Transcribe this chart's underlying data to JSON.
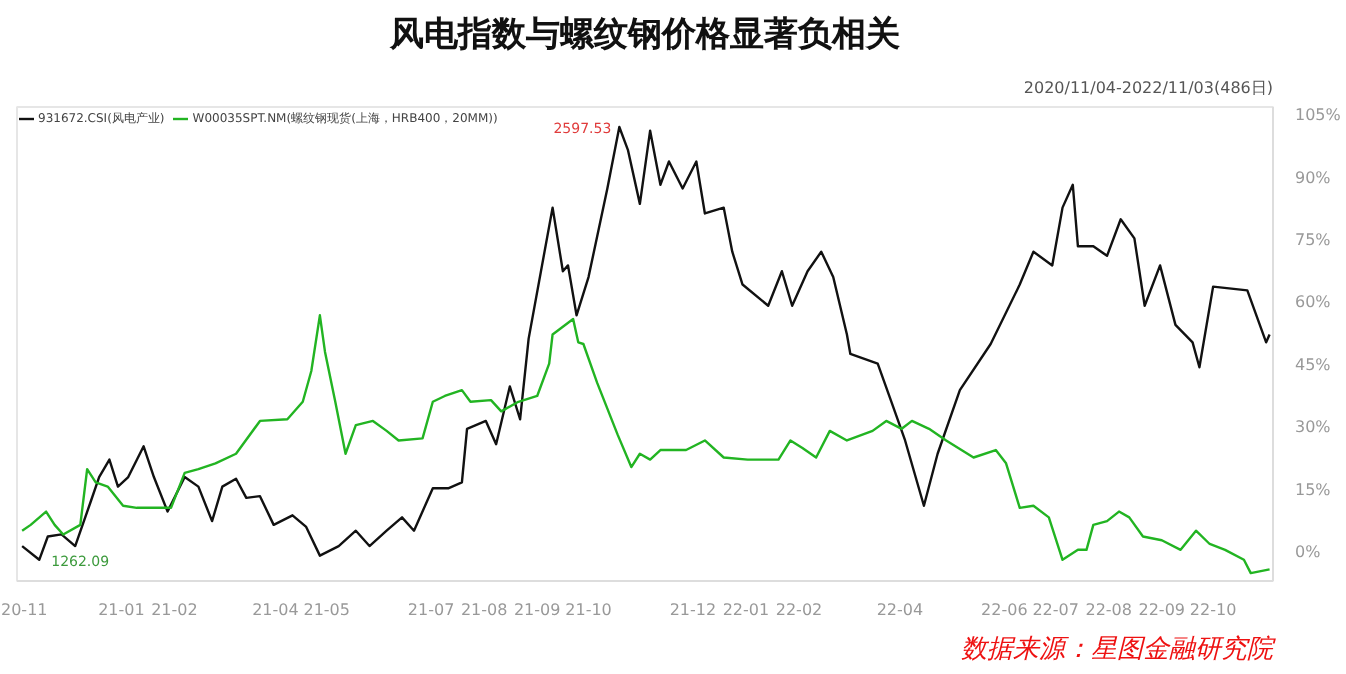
{
  "chart_data": {
    "type": "line",
    "title": "风电指数与螺纹钢价格显著负相关",
    "annotations": [
      "2020/11/04-2022/11/03(486日)",
      {
        "text": "2597.53",
        "x": "2021-10-19",
        "y": 102.2
      },
      {
        "text": "1262.09",
        "x": "2020-11-14",
        "y": -1.9
      },
      "数据来源：星图金融研究院"
    ],
    "legend": "top left",
    "grid": false,
    "line_style": "solid",
    "marker": "none",
    "ylim": [
      -7,
      107
    ],
    "yticks": [
      {
        "value": 0,
        "label": "0%"
      },
      {
        "value": 15,
        "label": "15%"
      },
      {
        "value": 30,
        "label": "30%"
      },
      {
        "value": 45,
        "label": "45%"
      },
      {
        "value": 60,
        "label": "60%"
      },
      {
        "value": 75,
        "label": "75%"
      },
      {
        "value": 90,
        "label": "90%"
      },
      {
        "value": 105,
        "label": "105%"
      }
    ],
    "xlim": [
      "2020-11-01",
      "2022-11-05"
    ],
    "xticks": [
      {
        "value": "2020-11-01",
        "label": "20-11"
      },
      {
        "value": "2021-01-01",
        "label": "21-01"
      },
      {
        "value": "2021-02-01",
        "label": "21-02"
      },
      {
        "value": "2021-04-01",
        "label": "21-04"
      },
      {
        "value": "2021-05-01",
        "label": "21-05"
      },
      {
        "value": "2021-07-01",
        "label": "21-07"
      },
      {
        "value": "2021-08-01",
        "label": "21-08"
      },
      {
        "value": "2021-09-01",
        "label": "21-09"
      },
      {
        "value": "2021-10-01",
        "label": "21-10"
      },
      {
        "value": "2021-12-01",
        "label": "21-12"
      },
      {
        "value": "2022-01-01",
        "label": "22-01"
      },
      {
        "value": "2022-02-01",
        "label": "22-02"
      },
      {
        "value": "2022-04-01",
        "label": "22-04"
      },
      {
        "value": "2022-06-01",
        "label": "22-06"
      },
      {
        "value": "2022-07-01",
        "label": "22-07"
      },
      {
        "value": "2022-08-01",
        "label": "22-08"
      },
      {
        "value": "2022-09-01",
        "label": "22-09"
      },
      {
        "value": "2022-10-01",
        "label": "22-10"
      }
    ],
    "series": [
      {
        "name": "931672.CSI(风电产业)",
        "color": "#111111",
        "x": [
          "2020-11-04",
          "2020-11-14",
          "2020-11-19",
          "2020-11-27",
          "2020-12-05",
          "2020-12-14",
          "2020-12-19",
          "2020-12-25",
          "2020-12-30",
          "2021-01-05",
          "2021-01-14",
          "2021-01-20",
          "2021-01-28",
          "2021-02-07",
          "2021-02-15",
          "2021-02-23",
          "2021-03-01",
          "2021-03-09",
          "2021-03-15",
          "2021-03-23",
          "2021-03-31",
          "2021-04-11",
          "2021-04-19",
          "2021-04-27",
          "2021-05-08",
          "2021-05-18",
          "2021-05-26",
          "2021-06-05",
          "2021-06-14",
          "2021-06-21",
          "2021-07-02",
          "2021-07-11",
          "2021-07-19",
          "2021-07-22",
          "2021-08-02",
          "2021-08-08",
          "2021-08-16",
          "2021-08-22",
          "2021-08-27",
          "2021-09-10",
          "2021-09-16",
          "2021-09-19",
          "2021-09-24",
          "2021-10-01",
          "2021-10-12",
          "2021-10-19",
          "2021-10-24",
          "2021-10-31",
          "2021-11-06",
          "2021-11-12",
          "2021-11-17",
          "2021-11-25",
          "2021-12-03",
          "2021-12-08",
          "2021-12-19",
          "2021-12-24",
          "2021-12-30",
          "2022-01-14",
          "2022-01-22",
          "2022-01-28",
          "2022-02-06",
          "2022-02-14",
          "2022-02-21",
          "2022-03-01",
          "2022-03-03",
          "2022-03-19",
          "2022-03-27",
          "2022-04-04",
          "2022-04-15",
          "2022-04-23",
          "2022-05-06",
          "2022-05-24",
          "2022-06-10",
          "2022-06-18",
          "2022-06-29",
          "2022-07-05",
          "2022-07-11",
          "2022-07-14",
          "2022-07-23",
          "2022-07-31",
          "2022-08-08",
          "2022-08-16",
          "2022-08-22",
          "2022-08-31",
          "2022-09-09",
          "2022-09-19",
          "2022-09-23",
          "2022-10-01",
          "2022-10-21",
          "2022-11-01",
          "2022-11-03"
        ],
        "values": [
          1.4,
          -1.9,
          3.7,
          4.2,
          1.4,
          12.0,
          18.0,
          22.2,
          15.7,
          18.0,
          25.4,
          18.0,
          9.7,
          18.0,
          15.7,
          7.4,
          15.7,
          17.6,
          13.0,
          13.4,
          6.5,
          8.8,
          6.0,
          -0.9,
          1.4,
          5.1,
          1.4,
          5.1,
          8.3,
          5.1,
          15.3,
          15.3,
          16.7,
          29.6,
          31.5,
          25.9,
          39.8,
          31.9,
          51.3,
          82.8,
          67.5,
          68.9,
          56.9,
          66.1,
          87.4,
          102.2,
          96.7,
          83.7,
          101.3,
          88.3,
          93.9,
          87.4,
          93.9,
          81.4,
          82.8,
          72.2,
          64.3,
          59.2,
          67.5,
          59.2,
          67.5,
          72.2,
          66.1,
          52.3,
          47.6,
          45.3,
          36.1,
          26.8,
          11.1,
          23.6,
          38.9,
          50.0,
          64.3,
          72.2,
          68.9,
          82.8,
          88.3,
          73.5,
          73.5,
          71.2,
          80.0,
          75.4,
          59.2,
          68.9,
          54.6,
          50.4,
          44.4,
          63.8,
          62.9,
          50.4,
          52.3
        ]
      },
      {
        "name": "W00035SPT.NM(螺纹钢现货(上海，HRB400，20MM))",
        "color": "#22b422",
        "x": [
          "2020-11-04",
          "2020-11-09",
          "2020-11-18",
          "2020-11-23",
          "2020-11-28",
          "2020-12-08",
          "2020-12-12",
          "2020-12-17",
          "2020-12-24",
          "2021-01-02",
          "2021-01-10",
          "2021-01-30",
          "2021-02-07",
          "2021-02-15",
          "2021-02-25",
          "2021-03-09",
          "2021-03-23",
          "2021-04-08",
          "2021-04-17",
          "2021-04-22",
          "2021-04-27",
          "2021-04-30",
          "2021-05-06",
          "2021-05-12",
          "2021-05-18",
          "2021-05-28",
          "2021-06-05",
          "2021-06-12",
          "2021-06-26",
          "2021-07-02",
          "2021-07-09",
          "2021-07-19",
          "2021-07-24",
          "2021-08-05",
          "2021-08-11",
          "2021-08-21",
          "2021-09-01",
          "2021-09-08",
          "2021-09-10",
          "2021-09-22",
          "2021-09-25",
          "2021-09-28",
          "2021-10-06",
          "2021-10-18",
          "2021-10-26",
          "2021-10-31",
          "2021-11-06",
          "2021-11-12",
          "2021-11-27",
          "2021-12-08",
          "2021-12-19",
          "2022-01-02",
          "2022-01-20",
          "2022-01-27",
          "2022-02-03",
          "2022-02-11",
          "2022-02-19",
          "2022-03-01",
          "2022-03-16",
          "2022-03-24",
          "2022-04-02",
          "2022-04-08",
          "2022-04-18",
          "2022-04-28",
          "2022-05-14",
          "2022-05-27",
          "2022-06-02",
          "2022-06-10",
          "2022-06-18",
          "2022-06-27",
          "2022-07-05",
          "2022-07-14",
          "2022-07-19",
          "2022-07-23",
          "2022-07-31",
          "2022-08-07",
          "2022-08-13",
          "2022-08-21",
          "2022-09-01",
          "2022-09-12",
          "2022-09-21",
          "2022-09-29",
          "2022-10-08",
          "2022-10-19",
          "2022-10-23",
          "2022-11-03"
        ],
        "values": [
          5.1,
          6.5,
          9.7,
          6.5,
          4.2,
          6.5,
          19.9,
          16.7,
          15.7,
          11.1,
          10.6,
          10.6,
          19.0,
          19.9,
          21.3,
          23.6,
          31.5,
          31.9,
          36.1,
          43.5,
          56.9,
          48.1,
          36.1,
          23.6,
          30.5,
          31.5,
          29.1,
          26.8,
          27.3,
          36.1,
          37.5,
          38.9,
          36.1,
          36.5,
          33.8,
          36.1,
          37.5,
          45.3,
          52.3,
          56.0,
          50.4,
          50.0,
          40.7,
          28.2,
          20.4,
          23.6,
          22.2,
          24.5,
          24.5,
          26.8,
          22.7,
          22.2,
          22.2,
          26.8,
          25.0,
          22.7,
          29.1,
          26.8,
          29.1,
          31.5,
          29.6,
          31.5,
          29.6,
          26.8,
          22.7,
          24.5,
          21.3,
          10.6,
          11.1,
          8.3,
          -1.9,
          0.5,
          0.5,
          6.5,
          7.4,
          9.7,
          8.3,
          3.7,
          2.8,
          0.5,
          5.1,
          1.9,
          0.5,
          -1.9,
          -5.1,
          -4.2
        ]
      }
    ]
  }
}
